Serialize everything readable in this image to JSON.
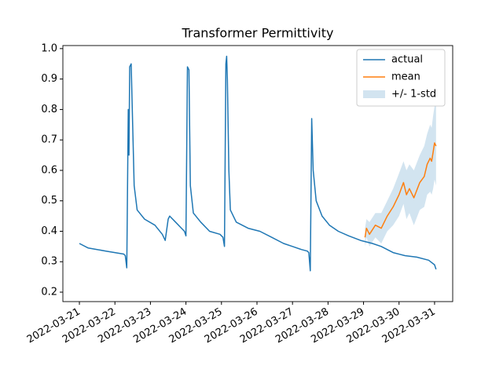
{
  "chart_data": {
    "type": "line",
    "title": "Transformer Permittivity",
    "xlim": [
      "2022-03-20T12:50",
      "2022-03-31T12:15"
    ],
    "xticks": [
      "2022-03-21",
      "2022-03-22",
      "2022-03-23",
      "2022-03-24",
      "2022-03-25",
      "2022-03-26",
      "2022-03-27",
      "2022-03-28",
      "2022-03-29",
      "2022-03-30",
      "2022-03-31"
    ],
    "ylim": [
      0.169,
      1.01
    ],
    "yticks": [
      0.2,
      0.3,
      0.4,
      0.5,
      0.6,
      0.7,
      0.8,
      0.9,
      {
        "value": 1.0,
        "label": "1.0"
      }
    ],
    "legend": "upper right",
    "series": [
      {
        "name": "actual",
        "color": "#1f77b4",
        "x": [
          "2022-03-21T00:00",
          "2022-03-21T06:00",
          "2022-03-21T12:00",
          "2022-03-21T18:00",
          "2022-03-22T00:00",
          "2022-03-22T06:00",
          "2022-03-22T07:00",
          "2022-03-22T08:00",
          "2022-03-22T09:00",
          "2022-03-22T09:30",
          "2022-03-22T10:00",
          "2022-03-22T11:00",
          "2022-03-22T12:00",
          "2022-03-22T13:00",
          "2022-03-22T15:00",
          "2022-03-22T20:00",
          "2022-03-23T03:00",
          "2022-03-23T08:00",
          "2022-03-23T10:00",
          "2022-03-23T12:00",
          "2022-03-23T13:00",
          "2022-03-23T17:00",
          "2022-03-23T21:00",
          "2022-03-23T23:00",
          "2022-03-24T00:00",
          "2022-03-24T01:00",
          "2022-03-24T02:00",
          "2022-03-24T03:00",
          "2022-03-24T05:00",
          "2022-03-24T10:00",
          "2022-03-24T16:00",
          "2022-03-24T23:00",
          "2022-03-25T01:00",
          "2022-03-25T02:00",
          "2022-03-25T03:00",
          "2022-03-25T03:30",
          "2022-03-25T04:00",
          "2022-03-25T05:00",
          "2022-03-25T06:00",
          "2022-03-25T10:00",
          "2022-03-25T18:00",
          "2022-03-26T02:00",
          "2022-03-26T10:00",
          "2022-03-26T18:00",
          "2022-03-27T00:00",
          "2022-03-27T06:00",
          "2022-03-27T10:00",
          "2022-03-27T11:00",
          "2022-03-27T12:00",
          "2022-03-27T13:00",
          "2022-03-27T14:00",
          "2022-03-27T16:00",
          "2022-03-27T20:00",
          "2022-03-28T01:00",
          "2022-03-28T07:00",
          "2022-03-28T14:00",
          "2022-03-28T22:00",
          "2022-03-29T06:00",
          "2022-03-29T12:00",
          "2022-03-29T20:00",
          "2022-03-30T04:00",
          "2022-03-30T12:00",
          "2022-03-30T20:00",
          "2022-03-31T00:00",
          "2022-03-31T01:00"
        ],
        "values": [
          0.36,
          0.345,
          0.34,
          0.335,
          0.33,
          0.325,
          0.32,
          0.28,
          0.8,
          0.65,
          0.94,
          0.95,
          0.75,
          0.55,
          0.47,
          0.44,
          0.42,
          0.39,
          0.37,
          0.44,
          0.45,
          0.43,
          0.41,
          0.4,
          0.385,
          0.94,
          0.93,
          0.55,
          0.46,
          0.43,
          0.4,
          0.39,
          0.38,
          0.35,
          0.95,
          0.975,
          0.9,
          0.6,
          0.47,
          0.43,
          0.41,
          0.4,
          0.38,
          0.36,
          0.35,
          0.34,
          0.335,
          0.33,
          0.27,
          0.77,
          0.6,
          0.5,
          0.45,
          0.42,
          0.4,
          0.385,
          0.37,
          0.36,
          0.35,
          0.33,
          0.32,
          0.315,
          0.305,
          0.29,
          0.275
        ]
      },
      {
        "name": "mean",
        "color": "#ff7f0e",
        "x": [
          "2022-03-29T01:00",
          "2022-03-29T02:00",
          "2022-03-29T04:00",
          "2022-03-29T08:00",
          "2022-03-29T12:00",
          "2022-03-29T16:00",
          "2022-03-29T20:00",
          "2022-03-30T00:00",
          "2022-03-30T03:00",
          "2022-03-30T05:00",
          "2022-03-30T07:00",
          "2022-03-30T10:00",
          "2022-03-30T14:00",
          "2022-03-30T17:00",
          "2022-03-30T19:00",
          "2022-03-30T21:00",
          "2022-03-30T22:00",
          "2022-03-30T23:00",
          "2022-03-31T00:00",
          "2022-03-31T01:00"
        ],
        "values": [
          0.38,
          0.41,
          0.39,
          0.42,
          0.41,
          0.45,
          0.48,
          0.52,
          0.56,
          0.52,
          0.54,
          0.51,
          0.56,
          0.58,
          0.62,
          0.64,
          0.63,
          0.66,
          0.69,
          0.68
        ]
      },
      {
        "name": "+/- 1-std",
        "color": "#1f77b4",
        "opacity": 0.2,
        "x": [
          "2022-03-29T01:00",
          "2022-03-29T02:00",
          "2022-03-29T04:00",
          "2022-03-29T08:00",
          "2022-03-29T12:00",
          "2022-03-29T16:00",
          "2022-03-29T20:00",
          "2022-03-30T00:00",
          "2022-03-30T03:00",
          "2022-03-30T05:00",
          "2022-03-30T07:00",
          "2022-03-30T10:00",
          "2022-03-30T14:00",
          "2022-03-30T17:00",
          "2022-03-30T19:00",
          "2022-03-30T21:00",
          "2022-03-30T22:00",
          "2022-03-30T23:00",
          "2022-03-31T00:00",
          "2022-03-31T01:00"
        ],
        "upper": [
          0.41,
          0.44,
          0.43,
          0.46,
          0.46,
          0.5,
          0.54,
          0.59,
          0.63,
          0.6,
          0.62,
          0.6,
          0.65,
          0.68,
          0.72,
          0.75,
          0.74,
          0.78,
          0.81,
          0.81
        ],
        "lower": [
          0.35,
          0.38,
          0.35,
          0.38,
          0.36,
          0.4,
          0.42,
          0.45,
          0.49,
          0.44,
          0.46,
          0.42,
          0.47,
          0.48,
          0.52,
          0.53,
          0.52,
          0.54,
          0.57,
          0.55
        ]
      }
    ]
  }
}
